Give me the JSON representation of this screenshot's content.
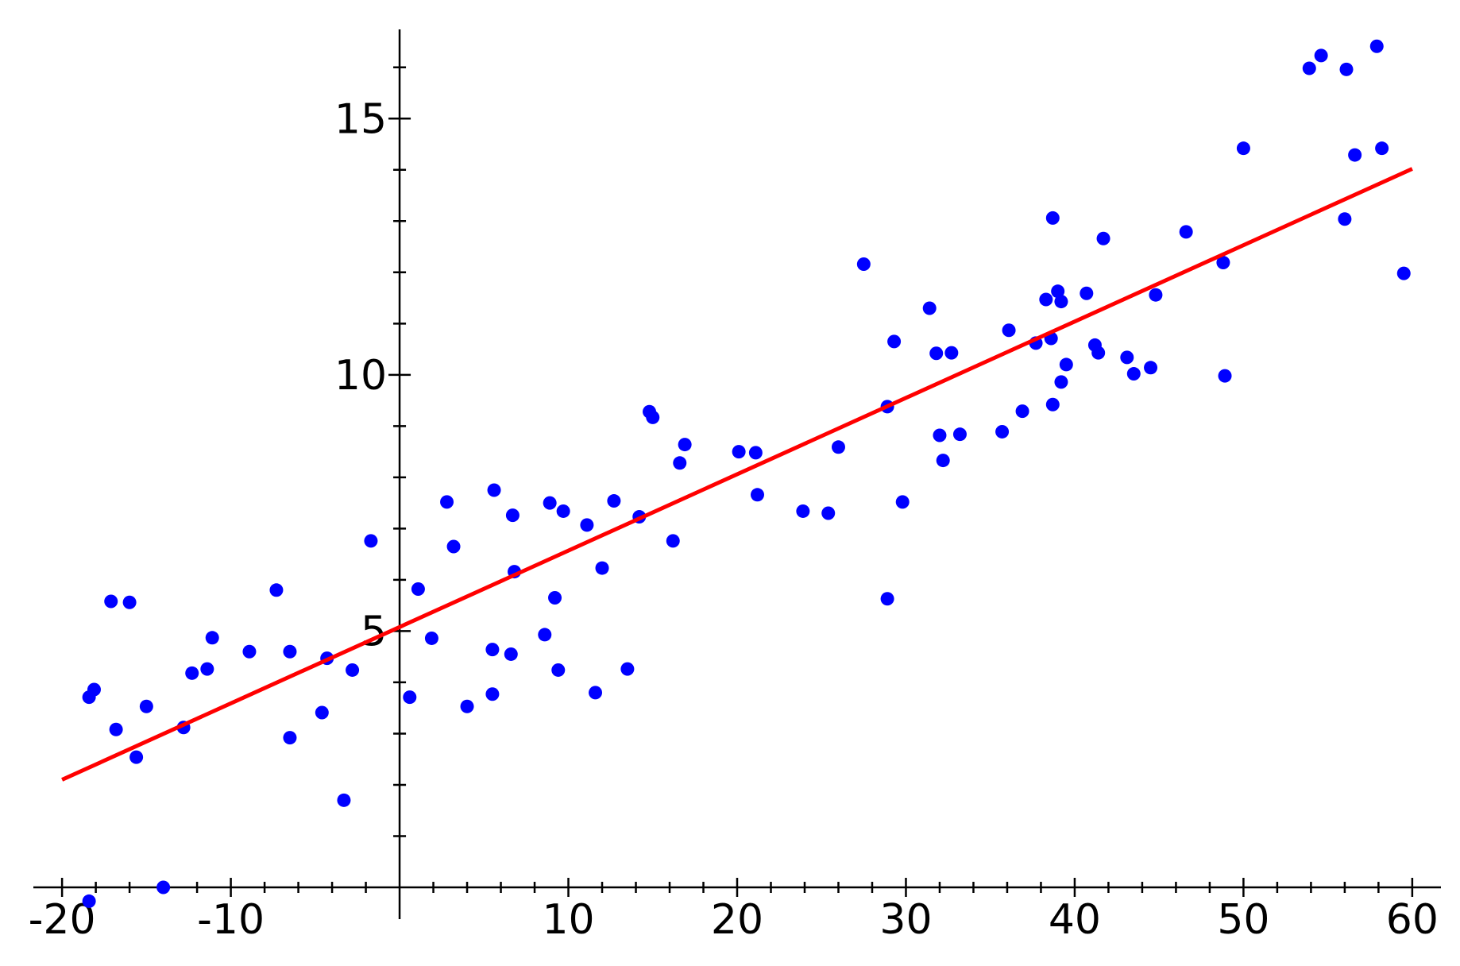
{
  "chart_data": {
    "type": "scatter",
    "xlim": [
      -21.7,
      61.7
    ],
    "ylim": [
      -0.62,
      16.74
    ],
    "xticks": [
      -20,
      -10,
      10,
      20,
      30,
      40,
      50,
      60
    ],
    "xticks_minor": [
      -18,
      -16,
      -14,
      -12,
      -8,
      -6,
      -4,
      -2,
      2,
      4,
      6,
      8,
      12,
      14,
      16,
      18,
      22,
      24,
      26,
      28,
      32,
      34,
      36,
      38,
      42,
      44,
      46,
      48,
      52,
      54,
      56,
      58
    ],
    "yticks": [
      5,
      10,
      15
    ],
    "yticks_minor": [
      1,
      2,
      3,
      4,
      6,
      7,
      8,
      9,
      11,
      12,
      13,
      14,
      16
    ],
    "series": [
      {
        "color": "#0000ff",
        "x": [
          -18.4,
          -18.4,
          -18.1,
          -17.1,
          -16.0,
          -16.8,
          -15.6,
          -15.0,
          -14.0,
          -12.8,
          -12.3,
          -11.4,
          -11.1,
          -8.9,
          -7.3,
          -6.5,
          -6.5,
          -4.6,
          -4.3,
          -3.3,
          -2.8,
          -1.7,
          0.6,
          1.1,
          1.9,
          2.8,
          3.2,
          4.0,
          5.6,
          5.5,
          5.5,
          6.7,
          6.8,
          6.6,
          8.6,
          8.9,
          9.2,
          9.4,
          9.7,
          11.1,
          11.6,
          12.0,
          12.7,
          13.5,
          14.2,
          14.8,
          15.0,
          16.2,
          16.6,
          16.9,
          20.1,
          21.1,
          21.2,
          23.9,
          25.4,
          26.0,
          27.5,
          28.9,
          28.9,
          29.3,
          29.8,
          31.4,
          31.8,
          32.7,
          32.0,
          32.2,
          33.2,
          35.7,
          36.1,
          36.9,
          37.7,
          38.3,
          38.6,
          38.7,
          38.7,
          39.0,
          39.2,
          39.2,
          39.5,
          40.7,
          41.2,
          41.4,
          41.7,
          43.1,
          43.5,
          44.5,
          44.8,
          46.6,
          48.8,
          48.9,
          50.0,
          53.9,
          54.6,
          56.0,
          56.1,
          56.6,
          57.9,
          58.2,
          59.5
        ],
        "y": [
          -0.27,
          3.71,
          3.86,
          5.58,
          5.56,
          3.08,
          2.54,
          3.53,
          0,
          3.12,
          4.18,
          4.26,
          4.87,
          4.6,
          5.8,
          4.6,
          2.92,
          3.41,
          4.47,
          1.7,
          4.24,
          6.76,
          3.71,
          5.82,
          4.86,
          7.52,
          6.65,
          3.53,
          7.75,
          4.64,
          3.77,
          7.26,
          6.16,
          4.55,
          4.93,
          7.5,
          5.65,
          4.24,
          7.34,
          7.07,
          3.8,
          6.23,
          7.54,
          4.26,
          7.23,
          9.28,
          9.17,
          6.76,
          8.28,
          8.64,
          8.5,
          8.48,
          7.66,
          7.34,
          7.3,
          8.59,
          12.16,
          9.38,
          5.63,
          10.65,
          7.52,
          11.3,
          10.42,
          10.43,
          8.82,
          8.33,
          8.84,
          8.89,
          10.87,
          9.29,
          10.62,
          11.47,
          10.71,
          13.06,
          9.42,
          11.63,
          11.43,
          9.86,
          10.2,
          11.59,
          10.58,
          10.43,
          12.66,
          10.34,
          10.02,
          10.14,
          11.56,
          12.79,
          12.19,
          9.98,
          14.42,
          15.98,
          16.23,
          13.04,
          15.96,
          14.29,
          16.41,
          14.42,
          11.98
        ]
      }
    ],
    "fit_line": {
      "color": "#ff0000",
      "x": [
        -20,
        60
      ],
      "y": [
        2.1,
        14.02
      ]
    }
  }
}
